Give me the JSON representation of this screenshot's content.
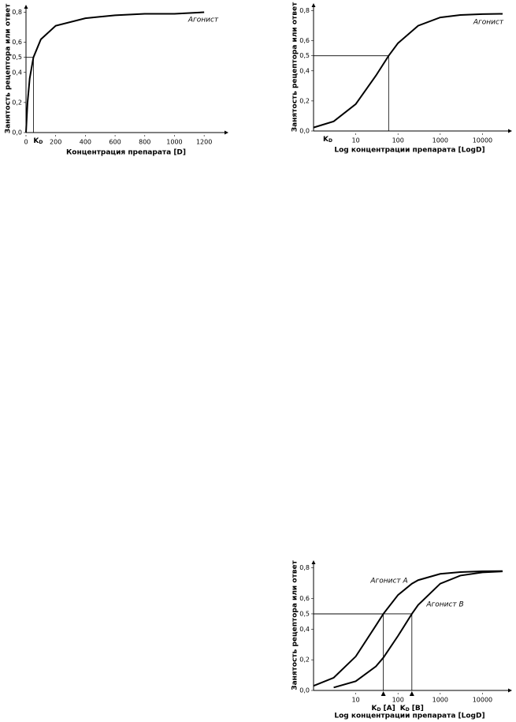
{
  "chart_data": [
    {
      "type": "line",
      "y_label": "Занятость рецептора или ответ",
      "x_label": "Концентрация препарата [D]",
      "x": [
        0,
        10,
        25,
        50,
        100,
        200,
        400,
        600,
        800,
        1000,
        1200
      ],
      "series": [
        {
          "name": "Агонист",
          "color": "#000000",
          "kd": 50,
          "kd_label": {
            "symbol": "K",
            "subscript": "D"
          },
          "values": [
            0,
            0.195,
            0.36,
            0.5,
            0.62,
            0.71,
            0.76,
            0.78,
            0.79,
            0.79,
            0.8
          ]
        }
      ],
      "xlim": [
        0,
        1300
      ],
      "ylim": [
        0,
        0.85
      ],
      "xticks": [
        0,
        200,
        400,
        600,
        800,
        1000,
        1200
      ],
      "yticks": [
        {
          "value": 0,
          "label": "0,0"
        },
        {
          "value": 0.2,
          "label": "0,2"
        },
        {
          "value": 0.4,
          "label": "0,4"
        },
        {
          "value": 0.5,
          "label": "0,5"
        },
        {
          "value": 0.6,
          "label": "0,6"
        },
        {
          "value": 0.8,
          "label": "0,8"
        }
      ]
    },
    {
      "type": "line",
      "y_label": "Занятость рецептора или ответ",
      "x_label": "Log концентрации препарата [LogD]",
      "log_x": true,
      "x": [
        1,
        3,
        10,
        30,
        60,
        100,
        300,
        1000,
        3000,
        10000,
        30000
      ],
      "series": [
        {
          "name": "Агонист",
          "color": "#000000",
          "kd": 60,
          "kd_label": {
            "symbol": "K",
            "subscript": "D"
          },
          "values": [
            0.023,
            0.064,
            0.179,
            0.368,
            0.5,
            0.584,
            0.7,
            0.755,
            0.771,
            0.777,
            0.779
          ]
        }
      ],
      "xlim": [
        1,
        30000
      ],
      "ylim": [
        0,
        0.85
      ],
      "xticks": [
        10,
        100,
        1000,
        10000
      ],
      "yticks": [
        {
          "value": 0,
          "label": "0,0"
        },
        {
          "value": 0.2,
          "label": "0,2"
        },
        {
          "value": 0.4,
          "label": "0,4"
        },
        {
          "value": 0.5,
          "label": "0,5"
        },
        {
          "value": 0.6,
          "label": "0,6"
        },
        {
          "value": 0.8,
          "label": "0,8"
        }
      ]
    },
    {
      "type": "line",
      "y_label": "Занятость рецептора или ответ",
      "x_label": "Log концентрации препарата [LogD]",
      "log_x": true,
      "x": [
        1,
        3,
        10,
        30,
        45,
        100,
        213,
        300,
        1000,
        3000,
        10000,
        30000
      ],
      "series": [
        {
          "name": "Агонист А",
          "color": "#000000",
          "kd": 45,
          "kd_label": {
            "symbol": "K",
            "subscript": "D",
            "suffix": "[A]"
          },
          "values": [
            0.03,
            0.083,
            0.222,
            0.424,
            0.5,
            0.623,
            0.697,
            0.72,
            0.761,
            0.773,
            0.778,
            0.779
          ]
        },
        {
          "name": "Агонист В",
          "color": "#000000",
          "kd": 213,
          "kd_label": {
            "symbol": "K",
            "subscript": "D",
            "suffix": "[B]"
          },
          "values": [
            null,
            0.019,
            0.06,
            0.157,
            0.214,
            0.356,
            0.5,
            0.558,
            0.697,
            0.75,
            0.771,
            0.777
          ]
        }
      ],
      "xlim": [
        1,
        30000
      ],
      "ylim": [
        0,
        0.85
      ],
      "xticks": [
        10,
        100,
        1000,
        10000
      ],
      "yticks": [
        {
          "value": 0,
          "label": "0,0"
        },
        {
          "value": 0.2,
          "label": "0,2"
        },
        {
          "value": 0.4,
          "label": "0,4"
        },
        {
          "value": 0.5,
          "label": "0,5"
        },
        {
          "value": 0.6,
          "label": "0,6"
        },
        {
          "value": 0.8,
          "label": "0,8"
        }
      ]
    }
  ]
}
